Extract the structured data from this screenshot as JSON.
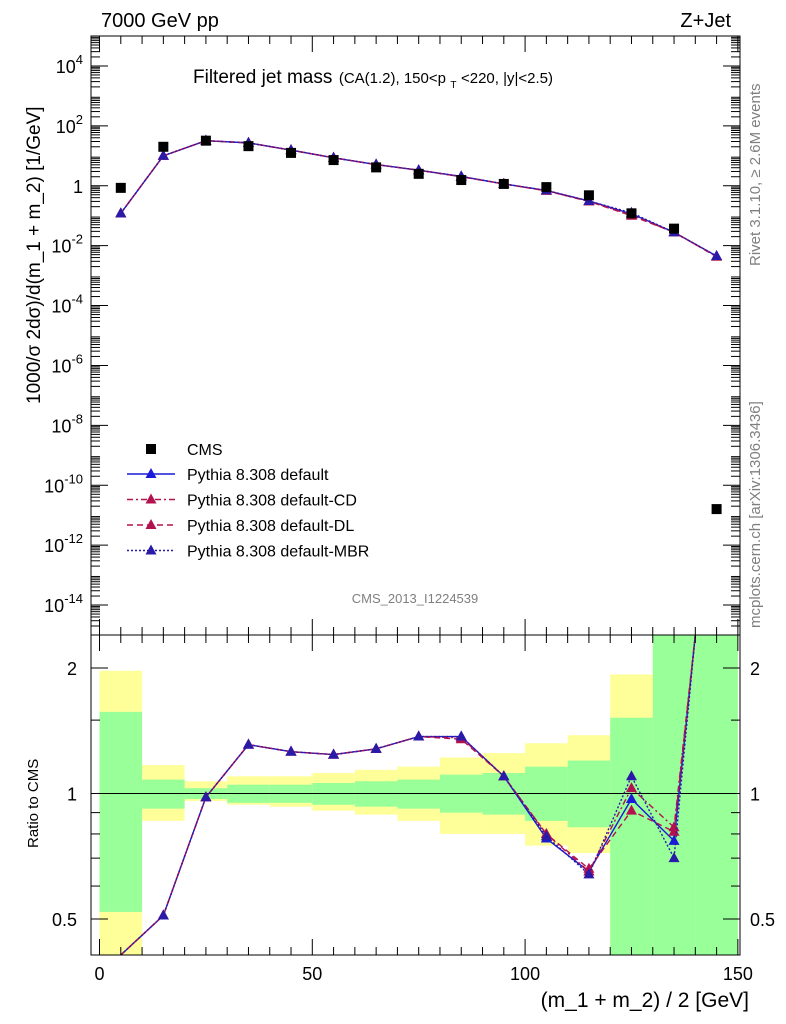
{
  "header": {
    "left": "7000 GeV pp",
    "right": "Z+Jet"
  },
  "plot_title": {
    "main": "Filtered jet mass",
    "cuts": "(CA(1.2), 150<p",
    "cuts_sub": "T",
    "cuts_rest": "<220, |y|<2.5)"
  },
  "side_labels": {
    "rivet": "Rivet 3.1.10, ≥ 2.6M events",
    "mcplots": "mcplots.cern.ch [arXiv:1306.3436]"
  },
  "analysis_id": "CMS_2013_I1224539",
  "chart_data": [
    {
      "type": "scatter",
      "panel": "main",
      "ylabel": "1000/σ 2dσ)/d(m_1 + m_2) [1/GeV]",
      "yscale": "log",
      "ylim": [
        1e-15,
        100000.0
      ],
      "xlim": [
        -2,
        150.5
      ],
      "y_ticks": [
        {
          "label_base": "10",
          "label_exp": "4",
          "value": 10000.0
        },
        {
          "label_base": "10",
          "label_exp": "2",
          "value": 100.0
        },
        {
          "label_base": "1",
          "label_exp": "",
          "value": 1
        },
        {
          "label_base": "10",
          "label_exp": "-2",
          "value": 0.01
        },
        {
          "label_base": "10",
          "label_exp": "-4",
          "value": 0.0001
        },
        {
          "label_base": "10",
          "label_exp": "-6",
          "value": 1e-06
        },
        {
          "label_base": "10",
          "label_exp": "-8",
          "value": 1e-08
        },
        {
          "label_base": "10",
          "label_exp": "-10",
          "value": 1e-10
        },
        {
          "label_base": "10",
          "label_exp": "-12",
          "value": 1e-12
        },
        {
          "label_base": "10",
          "label_exp": "-14",
          "value": 1e-14
        }
      ],
      "cms": {
        "name": "CMS",
        "x": [
          5,
          15,
          25,
          35,
          45,
          55,
          65,
          75,
          85,
          95,
          105,
          115,
          125,
          135,
          145
        ],
        "y": [
          0.85,
          20,
          32,
          21,
          12.5,
          7.2,
          4.1,
          2.5,
          1.55,
          1.15,
          0.9,
          0.48,
          0.12,
          0.037,
          1.6e-11
        ]
      },
      "series": [
        {
          "name": "Pythia 8.308 default",
          "color": "#1a1ad9",
          "style": "solid",
          "x": [
            5,
            15,
            25,
            35,
            45,
            55,
            65,
            75,
            85,
            95,
            105,
            115,
            125,
            135,
            145
          ],
          "y": [
            0.12,
            10,
            32,
            27,
            15.5,
            8.6,
            5.1,
            3.3,
            2.05,
            1.15,
            0.7,
            0.31,
            0.115,
            0.028,
            0.0045
          ]
        },
        {
          "name": "Pythia 8.308 default-CD",
          "color": "#b3124f",
          "style": "dashdot",
          "x": [
            5,
            15,
            25,
            35,
            45,
            55,
            65,
            75,
            85,
            95,
            105,
            115,
            125,
            135,
            145
          ],
          "y": [
            0.12,
            10,
            32,
            27,
            15.4,
            8.6,
            5.1,
            3.3,
            2.0,
            1.15,
            0.68,
            0.3,
            0.105,
            0.028,
            0.0043
          ]
        },
        {
          "name": "Pythia 8.308 default-DL",
          "color": "#b3124f",
          "style": "dashed",
          "x": [
            5,
            15,
            25,
            35,
            45,
            55,
            65,
            75,
            85,
            95,
            105,
            115,
            125,
            135,
            145
          ],
          "y": [
            0.12,
            10,
            32,
            27,
            15.4,
            8.6,
            5.1,
            3.3,
            2.0,
            1.15,
            0.68,
            0.3,
            0.1,
            0.028,
            0.0043
          ]
        },
        {
          "name": "Pythia 8.308 default-MBR",
          "color": "#2a1aa8",
          "style": "dotted",
          "x": [
            5,
            15,
            25,
            35,
            45,
            55,
            65,
            75,
            85,
            95,
            105,
            115,
            125,
            135,
            145
          ],
          "y": [
            0.12,
            10,
            32,
            27,
            15.5,
            8.6,
            5.1,
            3.3,
            2.05,
            1.15,
            0.7,
            0.31,
            0.125,
            0.028,
            0.0045
          ]
        }
      ]
    },
    {
      "type": "line",
      "panel": "ratio",
      "xlabel": "(m_1 + m_2) / 2 [GeV]",
      "ylabel": "Ratio to CMS",
      "yscale": "log",
      "ylim": [
        0.41,
        2.4
      ],
      "xlim": [
        -2,
        150.5
      ],
      "x_ticks": [
        0,
        50,
        100,
        150
      ],
      "y_ticks": [
        0.5,
        1,
        2
      ],
      "reference_line": 1,
      "bands": {
        "bin_edges": [
          0,
          10,
          20,
          30,
          40,
          50,
          60,
          70,
          80,
          90,
          100,
          110,
          120,
          130,
          140,
          150
        ],
        "yellow": [
          [
            0.41,
            1.97
          ],
          [
            0.86,
            1.17
          ],
          [
            0.96,
            1.07
          ],
          [
            0.94,
            1.1
          ],
          [
            0.93,
            1.1
          ],
          [
            0.91,
            1.12
          ],
          [
            0.89,
            1.14
          ],
          [
            0.86,
            1.16
          ],
          [
            0.8,
            1.22
          ],
          [
            0.8,
            1.25
          ],
          [
            0.75,
            1.32
          ],
          [
            0.72,
            1.38
          ],
          [
            0.41,
            1.93
          ],
          [
            0.41,
            2.4
          ],
          [
            0.41,
            2.4
          ]
        ],
        "green": [
          [
            0.52,
            1.57
          ],
          [
            0.92,
            1.08
          ],
          [
            0.97,
            1.03
          ],
          [
            0.95,
            1.05
          ],
          [
            0.95,
            1.05
          ],
          [
            0.94,
            1.06
          ],
          [
            0.93,
            1.07
          ],
          [
            0.92,
            1.08
          ],
          [
            0.9,
            1.11
          ],
          [
            0.89,
            1.12
          ],
          [
            0.86,
            1.16
          ],
          [
            0.83,
            1.2
          ],
          [
            0.41,
            1.52
          ],
          [
            0.41,
            2.4
          ],
          [
            0.41,
            2.4
          ]
        ]
      },
      "series": [
        {
          "name": "Pythia 8.308 default",
          "color": "#1a1ad9",
          "style": "solid",
          "x": [
            5,
            15,
            25,
            35,
            45,
            55,
            65,
            75,
            85,
            95,
            105,
            115,
            125,
            135,
            140
          ],
          "y": [
            0.14,
            0.51,
            0.98,
            1.31,
            1.26,
            1.24,
            1.28,
            1.37,
            1.37,
            1.1,
            0.78,
            0.65,
            0.97,
            0.77,
            2.4
          ]
        },
        {
          "name": "Pythia 8.308 default-CD",
          "color": "#b3124f",
          "style": "dashdot",
          "x": [
            5,
            15,
            25,
            35,
            45,
            55,
            65,
            75,
            85,
            95,
            105,
            115,
            125,
            135,
            140
          ],
          "y": [
            0.14,
            0.51,
            0.98,
            1.31,
            1.26,
            1.24,
            1.28,
            1.37,
            1.36,
            1.1,
            0.8,
            0.65,
            1.03,
            0.83,
            2.4
          ]
        },
        {
          "name": "Pythia 8.308 default-DL",
          "color": "#b3124f",
          "style": "dashed",
          "x": [
            5,
            15,
            25,
            35,
            45,
            55,
            65,
            75,
            85,
            95,
            105,
            115,
            125,
            135,
            140
          ],
          "y": [
            0.14,
            0.51,
            0.98,
            1.31,
            1.26,
            1.24,
            1.28,
            1.37,
            1.35,
            1.1,
            0.8,
            0.66,
            0.91,
            0.81,
            2.4
          ]
        },
        {
          "name": "Pythia 8.308 default-MBR",
          "color": "#2a1aa8",
          "style": "dotted",
          "x": [
            5,
            15,
            25,
            35,
            45,
            55,
            65,
            75,
            85,
            95,
            105,
            115,
            125,
            135,
            140
          ],
          "y": [
            0.14,
            0.51,
            0.98,
            1.31,
            1.26,
            1.24,
            1.28,
            1.37,
            1.37,
            1.1,
            0.79,
            0.64,
            1.1,
            0.7,
            2.4
          ]
        }
      ]
    }
  ]
}
